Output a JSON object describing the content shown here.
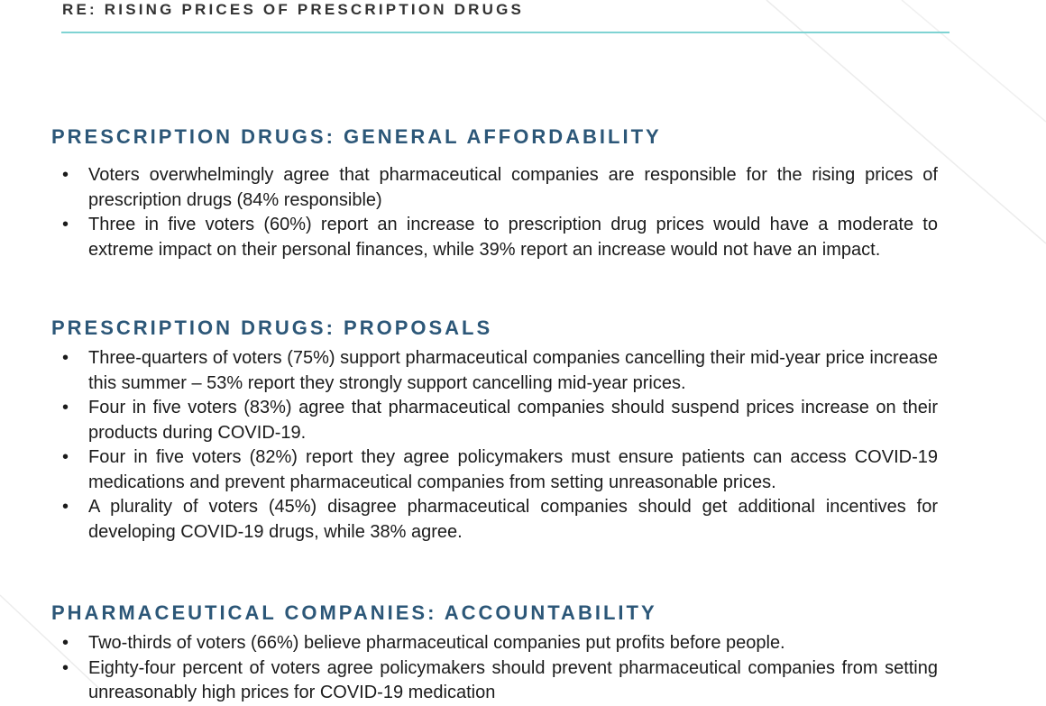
{
  "header": {
    "title": "RE: RISING PRICES OF PRESCRIPTION DRUGS"
  },
  "sections": [
    {
      "heading": "PRESCRIPTION DRUGS: GENERAL AFFORDABILITY",
      "bullets": [
        "Voters overwhelmingly agree that pharmaceutical companies are responsible for the rising prices of prescription drugs (84% responsible)",
        "Three in five voters (60%) report an increase to prescription drug prices would have a moderate to extreme impact on their personal finances, while 39% report an increase would not have an impact."
      ]
    },
    {
      "heading": "PRESCRIPTION DRUGS: PROPOSALS",
      "bullets": [
        "Three-quarters of voters (75%) support pharmaceutical companies cancelling their mid-year price increase this summer – 53% report they strongly support cancelling mid-year prices.",
        "Four in five voters (83%) agree that pharmaceutical companies should suspend prices increase on their products during COVID-19.",
        "Four in five voters (82%) report they agree policymakers must ensure patients can access COVID-19 medications and prevent pharmaceutical companies from setting unreasonable prices.",
        "A plurality of voters (45%) disagree pharmaceutical companies should get additional incentives for developing COVID-19 drugs, while 38% agree."
      ]
    },
    {
      "heading": "PHARMACEUTICAL COMPANIES: ACCOUNTABILITY",
      "bullets": [
        "Two-thirds of voters (66%) believe pharmaceutical companies put profits before people.",
        "Eighty-four percent of voters agree policymakers should prevent pharmaceutical companies from setting unreasonably high prices for COVID-19 medication"
      ]
    }
  ]
}
